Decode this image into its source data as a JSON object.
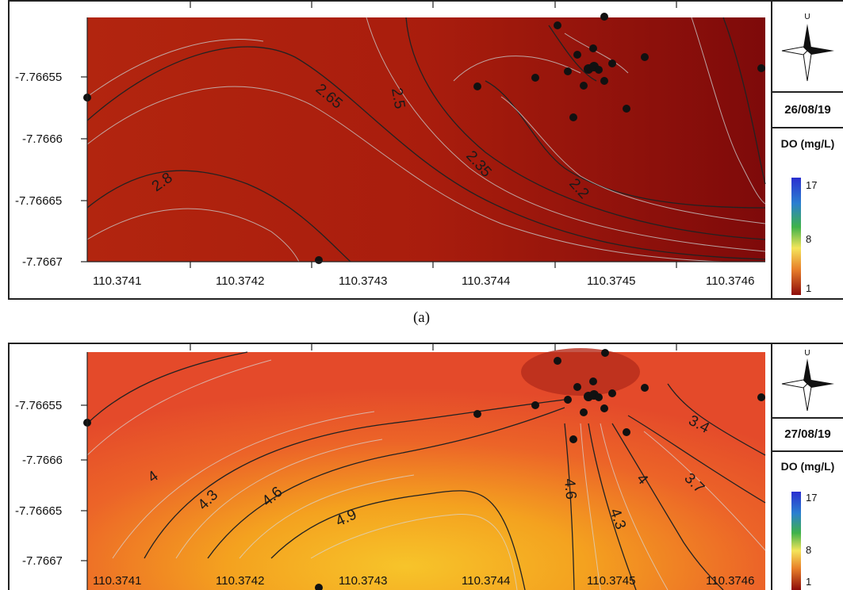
{
  "caption_a": "(a)",
  "compass_letter": "U",
  "panels": [
    {
      "date": "26/08/19",
      "legend_title": "DO (mg/L)",
      "legend_ticks": [
        "17",
        "8",
        "1"
      ],
      "y_ticks": [
        "-7.76655",
        "-7.7666",
        "-7.76665",
        "-7.7667"
      ],
      "x_ticks": [
        "110.3741",
        "110.3742",
        "110.3743",
        "110.3744",
        "110.3745",
        "110.3746"
      ],
      "contour_labels": [
        "2.65",
        "2.5",
        "2.8",
        "2.35",
        "2.2"
      ]
    },
    {
      "date": "27/08/19",
      "legend_title": "DO (mg/L)",
      "legend_ticks": [
        "17",
        "8",
        "1"
      ],
      "y_ticks": [
        "-7.76655",
        "-7.7666",
        "-7.76665",
        "-7.7667"
      ],
      "x_ticks": [
        "110.3741",
        "110.3742",
        "110.3743",
        "110.3744",
        "110.3745",
        "110.3746"
      ],
      "contour_labels": [
        "4",
        "4.3",
        "4.6",
        "4.9",
        "4.6",
        "4.3",
        "4",
        "3.7",
        "3.4"
      ]
    }
  ],
  "colors": {
    "colorbar_top": "#2a2fd0",
    "colorbar_mid": "#f4e55a",
    "colorbar_bottom": "#8e0c0a"
  }
}
